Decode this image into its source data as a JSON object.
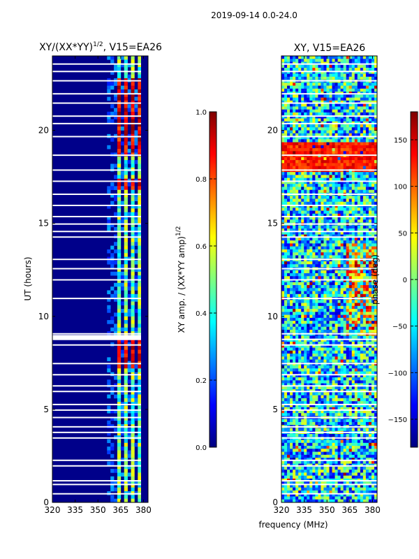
{
  "figure": {
    "suptitle": "2019-09-14 0.0-24.0",
    "shared_xlabel": "frequency (MHz)",
    "colormap": [
      "#00007f",
      "#0000ff",
      "#007fff",
      "#00ffff",
      "#7fff7f",
      "#ffff00",
      "#ff7f00",
      "#ff0000",
      "#7f0000"
    ]
  },
  "chart_data": [
    {
      "type": "heatmap",
      "title_main": "XY/(XX*YY)",
      "title_exp": "1/2",
      "title_tail": ", V15=EA26",
      "xlabel": "",
      "ylabel": "UT (hours)",
      "xlim": [
        320,
        383
      ],
      "ylim": [
        0,
        24
      ],
      "xticks": [
        320,
        335,
        350,
        365,
        380
      ],
      "yticks": [
        0,
        5,
        10,
        15,
        20
      ],
      "colorbar": {
        "label_main": "XY amp. / (XX*YY amp)",
        "label_exp": "1/2",
        "range": [
          0.0,
          1.0
        ],
        "ticks": [
          "0.0",
          "0.2",
          "0.4",
          "0.6",
          "0.8",
          "1.0"
        ]
      }
    },
    {
      "type": "heatmap",
      "title": "XY, V15=EA26",
      "xlabel": "frequency (MHz)",
      "ylabel": "",
      "xlim": [
        320,
        383
      ],
      "ylim": [
        0,
        24
      ],
      "xticks": [
        320,
        335,
        350,
        365,
        380
      ],
      "yticks": [
        0,
        5,
        10,
        15,
        20
      ],
      "colorbar": {
        "label": "phase (deg)",
        "range": [
          -180,
          180
        ],
        "ticks": [
          "−150",
          "−100",
          "−50",
          "0",
          "50",
          "100",
          "150"
        ]
      }
    }
  ]
}
